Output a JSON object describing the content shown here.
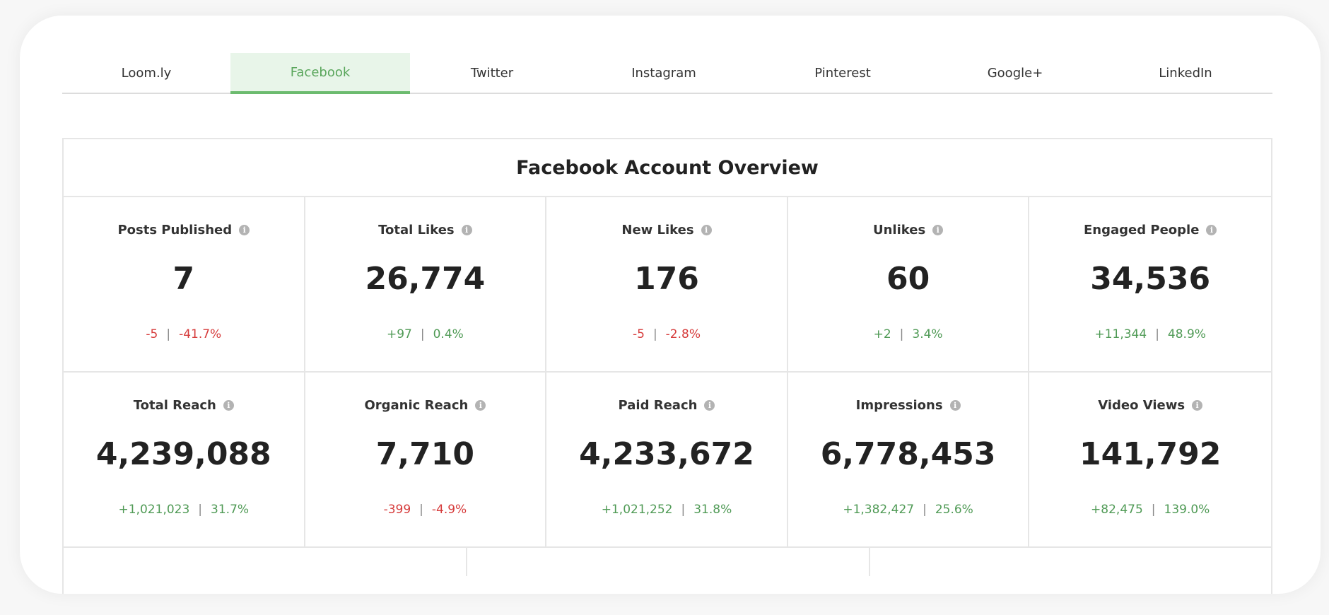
{
  "tabs": [
    {
      "label": "Loom.ly",
      "active": false
    },
    {
      "label": "Facebook",
      "active": true
    },
    {
      "label": "Twitter",
      "active": false
    },
    {
      "label": "Instagram",
      "active": false
    },
    {
      "label": "Pinterest",
      "active": false
    },
    {
      "label": "Google+",
      "active": false
    },
    {
      "label": "LinkedIn",
      "active": false
    }
  ],
  "overview": {
    "title": "Facebook Account Overview",
    "metrics": [
      {
        "label": "Posts Published",
        "value": "7",
        "delta": "-5",
        "percent": "-41.7%",
        "trend": "neg"
      },
      {
        "label": "Total Likes",
        "value": "26,774",
        "delta": "+97",
        "percent": "0.4%",
        "trend": "pos"
      },
      {
        "label": "New Likes",
        "value": "176",
        "delta": "-5",
        "percent": "-2.8%",
        "trend": "neg"
      },
      {
        "label": "Unlikes",
        "value": "60",
        "delta": "+2",
        "percent": "3.4%",
        "trend": "pos"
      },
      {
        "label": "Engaged People",
        "value": "34,536",
        "delta": "+11,344",
        "percent": "48.9%",
        "trend": "pos"
      },
      {
        "label": "Total Reach",
        "value": "4,239,088",
        "delta": "+1,021,023",
        "percent": "31.7%",
        "trend": "pos"
      },
      {
        "label": "Organic Reach",
        "value": "7,710",
        "delta": "-399",
        "percent": "-4.9%",
        "trend": "neg"
      },
      {
        "label": "Paid Reach",
        "value": "4,233,672",
        "delta": "+1,021,252",
        "percent": "31.8%",
        "trend": "pos"
      },
      {
        "label": "Impressions",
        "value": "6,778,453",
        "delta": "+1,382,427",
        "percent": "25.6%",
        "trend": "pos"
      },
      {
        "label": "Video Views",
        "value": "141,792",
        "delta": "+82,475",
        "percent": "139.0%",
        "trend": "pos"
      }
    ],
    "separator": "|",
    "info_icon_glyph": "i"
  },
  "colors": {
    "accent_green": "#5aa65c",
    "active_tab_bg": "#e8f5e9",
    "positive": "#4f9a55",
    "negative": "#d63b3b"
  }
}
